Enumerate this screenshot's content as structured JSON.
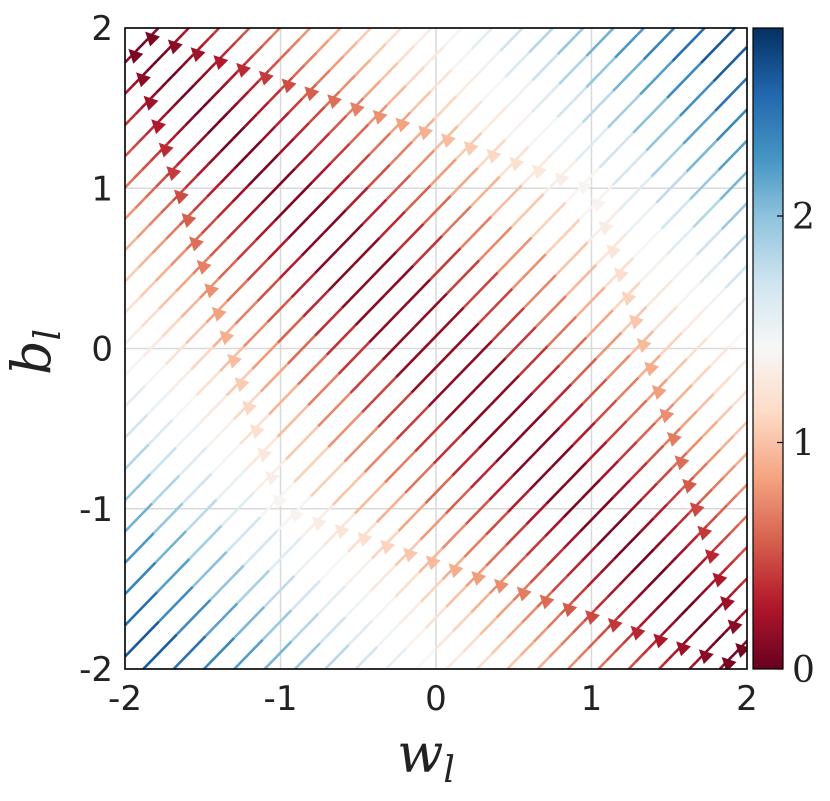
{
  "chart_data": {
    "type": "streamplot",
    "xlabel": "w",
    "xlabel_sub": "l",
    "ylabel": "b",
    "ylabel_sub": "l",
    "xlim": [
      -2,
      2
    ],
    "ylim": [
      -2,
      2
    ],
    "x_ticks": [
      "-2",
      "-1",
      "0",
      "1",
      "2"
    ],
    "y_ticks": [
      "-2",
      "-1",
      "0",
      "1",
      "2"
    ],
    "grid": true,
    "flow_direction": [
      -1,
      1
    ],
    "color_quantity": "|w + b| / sqrt(2)",
    "colormap": "RdBu",
    "colorbar": {
      "range": [
        0,
        2.83
      ],
      "ticks": [
        "0",
        "1",
        "2"
      ],
      "colors": [
        "#67001f",
        "#b2182b",
        "#d6604d",
        "#f4a582",
        "#fddbc7",
        "#f7f7f7",
        "#d1e5f0",
        "#92c5de",
        "#4393c3",
        "#2166ac",
        "#053061"
      ]
    }
  }
}
